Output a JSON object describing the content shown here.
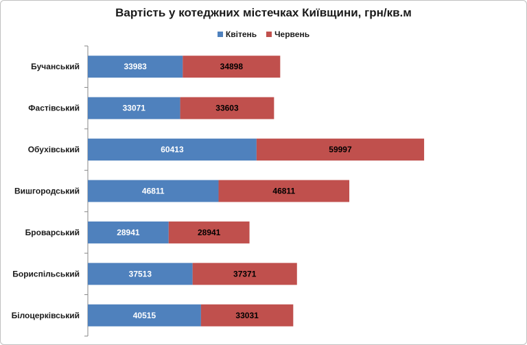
{
  "chart_data": {
    "type": "bar",
    "orientation": "horizontal",
    "stacked": true,
    "title": "Вартість у котеджних містечках Київщини, грн/кв.м",
    "categories": [
      "Бучанський",
      "Фастівський",
      "Обухівський",
      "Вишгородський",
      "Броварський",
      "Бориспільський",
      "Білоцерківський"
    ],
    "series": [
      {
        "name": "Квітень",
        "color": "#4f81bd",
        "label_color": "#ffffff",
        "values": [
          33983,
          33071,
          60413,
          46811,
          28941,
          37513,
          40515
        ]
      },
      {
        "name": "Червень",
        "color": "#c0504d",
        "label_color": "#000000",
        "values": [
          34898,
          33603,
          59997,
          46811,
          28941,
          37371,
          33031
        ]
      }
    ],
    "xlim": [
      0,
      135000
    ],
    "grid": false,
    "legend_position": "top"
  }
}
